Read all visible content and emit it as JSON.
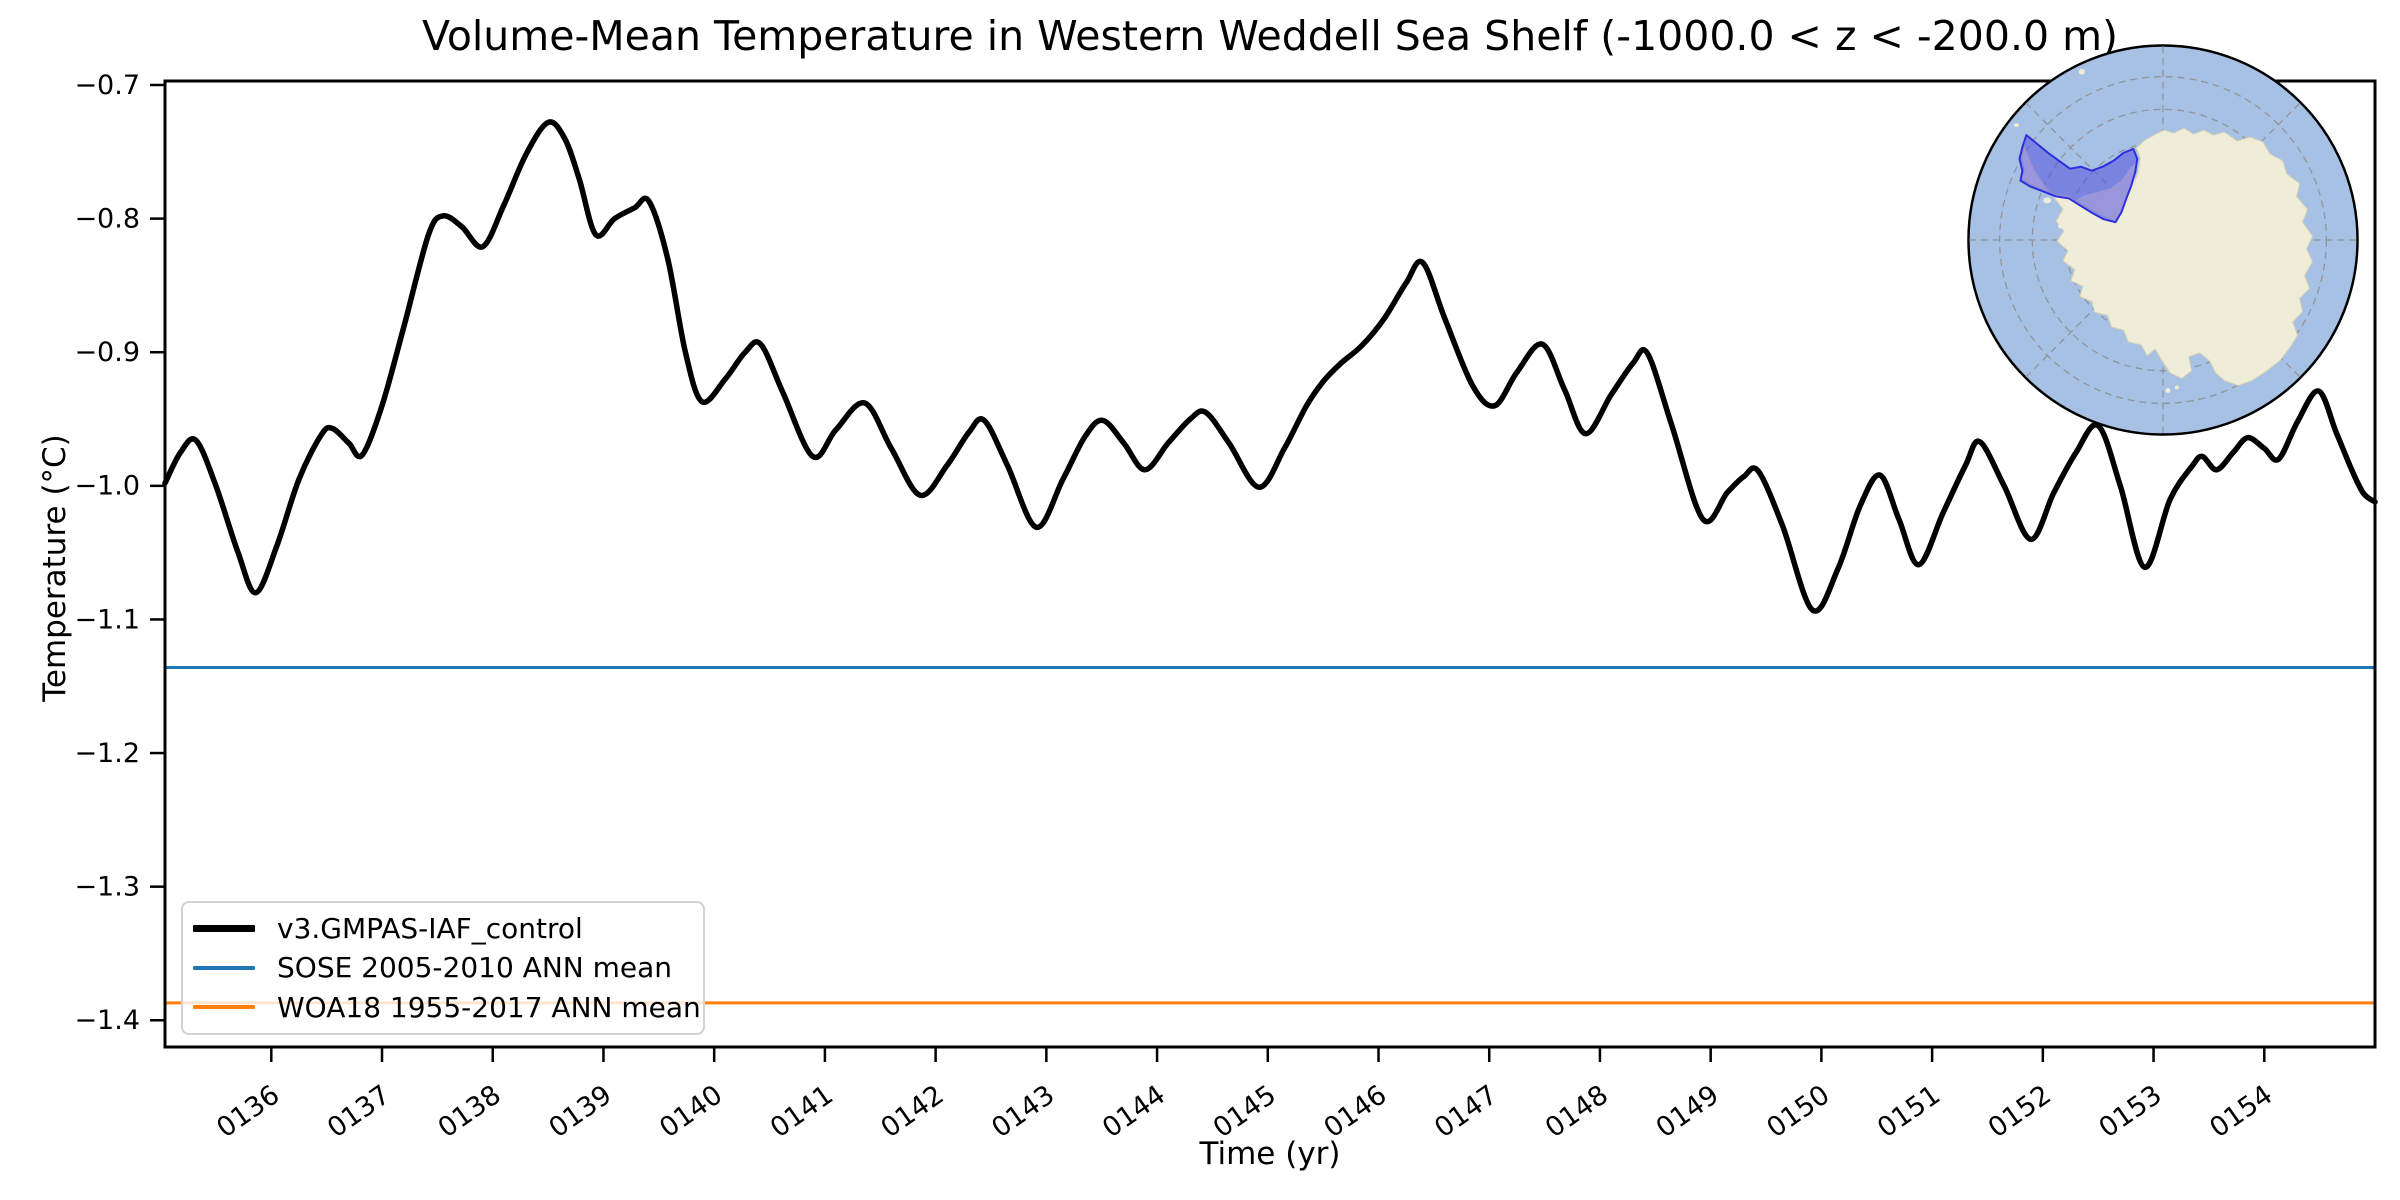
{
  "figure": {
    "window_kind": "matplotlib-style static plot"
  },
  "chart_data": {
    "type": "line",
    "title": "Volume-Mean Temperature in Western Weddell Sea Shelf (-1000.0 < z < -200.0 m)",
    "xlabel": "Time (yr)",
    "ylabel": "Temperature (°C)",
    "xlim": [
      135.04,
      155.0
    ],
    "ylim": [
      -1.42,
      -0.697
    ],
    "grid": false,
    "legend_position": "lower left",
    "x_ticks": [
      136,
      137,
      138,
      139,
      140,
      141,
      142,
      143,
      144,
      145,
      146,
      147,
      148,
      149,
      150,
      151,
      152,
      153,
      154
    ],
    "x_tick_labels": [
      "0136",
      "0137",
      "0138",
      "0139",
      "0140",
      "0141",
      "0142",
      "0143",
      "0144",
      "0145",
      "0146",
      "0147",
      "0148",
      "0149",
      "0150",
      "0151",
      "0152",
      "0153",
      "0154"
    ],
    "y_ticks": [
      -0.7,
      -0.8,
      -0.9,
      -1.0,
      -1.1,
      -1.2,
      -1.3,
      -1.4
    ],
    "y_tick_labels": [
      "−0.7",
      "−0.8",
      "−0.9",
      "−1.0",
      "−1.1",
      "−1.2",
      "−1.3",
      "−1.4"
    ],
    "series": [
      {
        "name": "v3.GMPAS-IAF_control",
        "color": "#000000",
        "linewidth": 5.5,
        "points": [
          [
            135.04,
            -0.998
          ],
          [
            135.18,
            -0.975
          ],
          [
            135.32,
            -0.966
          ],
          [
            135.5,
            -1.0
          ],
          [
            135.7,
            -1.05
          ],
          [
            135.86,
            -1.08
          ],
          [
            136.05,
            -1.045
          ],
          [
            136.25,
            -0.995
          ],
          [
            136.45,
            -0.962
          ],
          [
            136.55,
            -0.957
          ],
          [
            136.7,
            -0.968
          ],
          [
            136.82,
            -0.977
          ],
          [
            137.0,
            -0.94
          ],
          [
            137.2,
            -0.88
          ],
          [
            137.42,
            -0.812
          ],
          [
            137.55,
            -0.798
          ],
          [
            137.72,
            -0.806
          ],
          [
            137.91,
            -0.821
          ],
          [
            138.1,
            -0.79
          ],
          [
            138.3,
            -0.752
          ],
          [
            138.5,
            -0.728
          ],
          [
            138.65,
            -0.74
          ],
          [
            138.78,
            -0.77
          ],
          [
            138.93,
            -0.812
          ],
          [
            139.1,
            -0.8
          ],
          [
            139.28,
            -0.792
          ],
          [
            139.41,
            -0.787
          ],
          [
            139.58,
            -0.83
          ],
          [
            139.74,
            -0.9
          ],
          [
            139.89,
            -0.937
          ],
          [
            140.1,
            -0.92
          ],
          [
            140.28,
            -0.9
          ],
          [
            140.42,
            -0.894
          ],
          [
            140.62,
            -0.93
          ],
          [
            140.89,
            -0.978
          ],
          [
            141.1,
            -0.958
          ],
          [
            141.36,
            -0.938
          ],
          [
            141.6,
            -0.972
          ],
          [
            141.86,
            -1.007
          ],
          [
            142.1,
            -0.985
          ],
          [
            142.3,
            -0.96
          ],
          [
            142.44,
            -0.951
          ],
          [
            142.65,
            -0.985
          ],
          [
            142.91,
            -1.031
          ],
          [
            143.15,
            -0.995
          ],
          [
            143.35,
            -0.963
          ],
          [
            143.51,
            -0.951
          ],
          [
            143.7,
            -0.968
          ],
          [
            143.89,
            -0.988
          ],
          [
            144.1,
            -0.968
          ],
          [
            144.3,
            -0.95
          ],
          [
            144.44,
            -0.945
          ],
          [
            144.65,
            -0.968
          ],
          [
            144.92,
            -1.001
          ],
          [
            145.15,
            -0.972
          ],
          [
            145.35,
            -0.94
          ],
          [
            145.5,
            -0.922
          ],
          [
            145.65,
            -0.909
          ],
          [
            145.85,
            -0.895
          ],
          [
            146.05,
            -0.875
          ],
          [
            146.25,
            -0.848
          ],
          [
            146.4,
            -0.833
          ],
          [
            146.6,
            -0.875
          ],
          [
            146.85,
            -0.925
          ],
          [
            147.05,
            -0.94
          ],
          [
            147.25,
            -0.915
          ],
          [
            147.48,
            -0.894
          ],
          [
            147.68,
            -0.928
          ],
          [
            147.87,
            -0.961
          ],
          [
            148.1,
            -0.932
          ],
          [
            148.3,
            -0.908
          ],
          [
            148.43,
            -0.901
          ],
          [
            148.65,
            -0.955
          ],
          [
            148.93,
            -1.025
          ],
          [
            149.15,
            -1.005
          ],
          [
            149.3,
            -0.993
          ],
          [
            149.43,
            -0.989
          ],
          [
            149.65,
            -1.03
          ],
          [
            149.92,
            -1.093
          ],
          [
            150.15,
            -1.062
          ],
          [
            150.35,
            -1.015
          ],
          [
            150.53,
            -0.992
          ],
          [
            150.7,
            -1.025
          ],
          [
            150.88,
            -1.059
          ],
          [
            151.1,
            -1.02
          ],
          [
            151.3,
            -0.985
          ],
          [
            151.43,
            -0.967
          ],
          [
            151.65,
            -1.0
          ],
          [
            151.89,
            -1.04
          ],
          [
            152.1,
            -1.005
          ],
          [
            152.3,
            -0.975
          ],
          [
            152.5,
            -0.955
          ],
          [
            152.7,
            -1.0
          ],
          [
            152.92,
            -1.061
          ],
          [
            153.15,
            -1.01
          ],
          [
            153.35,
            -0.985
          ],
          [
            153.44,
            -0.978
          ],
          [
            153.57,
            -0.988
          ],
          [
            153.72,
            -0.975
          ],
          [
            153.85,
            -0.964
          ],
          [
            154.0,
            -0.972
          ],
          [
            154.13,
            -0.98
          ],
          [
            154.3,
            -0.952
          ],
          [
            154.49,
            -0.929
          ],
          [
            154.65,
            -0.96
          ],
          [
            154.8,
            -0.99
          ],
          [
            154.9,
            -1.006
          ],
          [
            155.0,
            -1.012
          ]
        ]
      },
      {
        "name": "SOSE 2005-2010 ANN mean",
        "color": "#1f77b4",
        "linewidth": 3,
        "constant": -1.136
      },
      {
        "name": "WOA18 1955-2017 ANN mean",
        "color": "#ff7f0e",
        "linewidth": 3,
        "constant": -1.387
      }
    ]
  },
  "legend": {
    "items": [
      {
        "label": "v3.GMPAS-IAF_control"
      },
      {
        "label": "SOSE 2005-2010 ANN mean"
      },
      {
        "label": "WOA18 1955-2017 ANN mean"
      }
    ]
  },
  "inset_map": {
    "ocean_color": "#a6c1e3",
    "land_color": "#efecd7",
    "coast_color": "#d5d1b6",
    "graticule_color": "#8c8c8c",
    "highlight_fill": "rgba(84,80,222,0.55)",
    "highlight_edge": "#2e2ede",
    "border_color": "#000000"
  }
}
